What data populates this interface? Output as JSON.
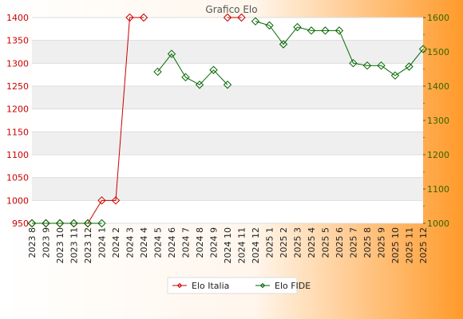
{
  "chart_data": {
    "type": "line",
    "title": "Grafico Elo",
    "categories": [
      "2023 8",
      "2023 9",
      "2023 10",
      "2023 11",
      "2023 12",
      "2024 1",
      "2024 2",
      "2024 3",
      "2024 4",
      "2024 5",
      "2024 6",
      "2024 7",
      "2024 8",
      "2024 9",
      "2024 10",
      "2024 11",
      "2024 12",
      "2025 1",
      "2025 2",
      "2025 3",
      "2025 4",
      "2025 5",
      "2025 6",
      "2025 7",
      "2025 8",
      "2025 9",
      "2025 10",
      "2025 11",
      "2025 12"
    ],
    "series": [
      {
        "name": "Elo Italia",
        "axis": "left",
        "color": "#cc0000",
        "values": [
          950,
          950,
          950,
          950,
          950,
          1000,
          1000,
          1400,
          1400,
          null,
          null,
          null,
          null,
          null,
          1400,
          1400,
          null,
          null,
          null,
          null,
          null,
          null,
          null,
          null,
          null,
          null,
          null,
          null,
          null
        ]
      },
      {
        "name": "Elo FIDE",
        "axis": "right",
        "color": "#006600",
        "values": [
          1000,
          1000,
          1000,
          1000,
          1000,
          1000,
          null,
          null,
          null,
          1442,
          1494,
          1426,
          1404,
          1447,
          1404,
          null,
          1589,
          1577,
          1522,
          1572,
          1562,
          1562,
          1562,
          1467,
          1460,
          1460,
          1431,
          1457,
          1508
        ]
      }
    ],
    "y_left": {
      "min": 950,
      "max": 1400,
      "ticks": [
        950,
        1000,
        1050,
        1100,
        1150,
        1200,
        1250,
        1300,
        1350,
        1400
      ],
      "color": "#cc0000"
    },
    "y_right": {
      "min": 1000,
      "max": 1600,
      "ticks": [
        1000,
        1100,
        1200,
        1300,
        1400,
        1500,
        1600
      ],
      "color": "#336600"
    },
    "grid": true,
    "legend_position": "bottom-center"
  }
}
